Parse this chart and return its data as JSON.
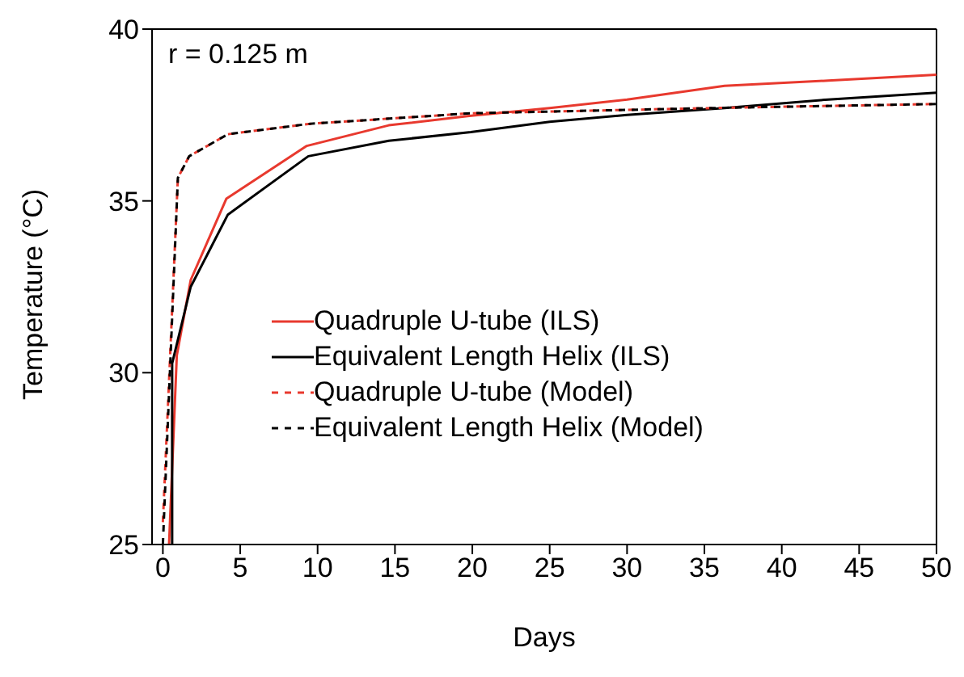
{
  "chart_data": {
    "type": "line",
    "xlabel": "Days",
    "ylabel": "Temperature (°C)",
    "annotations": [
      "r = 0.125 m"
    ],
    "xlim": [
      -0.7,
      50
    ],
    "xticks": [
      0,
      5,
      10,
      15,
      20,
      25,
      30,
      35,
      40,
      45,
      50
    ],
    "ylim": [
      25,
      40
    ],
    "yticks": [
      25,
      30,
      35,
      40
    ],
    "grid": false,
    "legend": "bottom",
    "marker": "none",
    "series": [
      {
        "name": "Quadruple U-tube (ILS)",
        "color": "#e8392e",
        "line_style": "solid",
        "x": [
          0.4,
          0.9,
          1.8,
          4.1,
          9.3,
          14.6,
          19.8,
          25,
          30,
          36.3,
          43,
          50
        ],
        "values": [
          25,
          30.5,
          32.7,
          35.06,
          36.6,
          37.2,
          37.47,
          37.7,
          37.95,
          38.35,
          38.5,
          38.67
        ]
      },
      {
        "name": "Equivalent Length Helix (ILS)",
        "color": "#000000",
        "line_style": "solid",
        "x": [
          0.6,
          0.6,
          1.8,
          4.2,
          9.4,
          14.6,
          19.9,
          25,
          30,
          36.3,
          43,
          50
        ],
        "values": [
          25,
          30.27,
          32.5,
          34.6,
          36.3,
          36.75,
          37.0,
          37.3,
          37.5,
          37.7,
          37.95,
          38.15
        ]
      },
      {
        "name": "Quadruple U-tube (Model)",
        "color": "#e8392e",
        "line_style": "dashed",
        "x": [
          0,
          0.97,
          1.7,
          4.2,
          9.4,
          19.9,
          36.3,
          50
        ],
        "values": [
          25.65,
          35.67,
          36.3,
          36.94,
          37.24,
          37.55,
          37.71,
          37.82
        ]
      },
      {
        "name": "Equivalent Length Helix (Model)",
        "color": "#000000",
        "line_style": "dashed",
        "x": [
          0,
          0.97,
          1.7,
          4.2,
          9.4,
          19.9,
          36.3,
          50
        ],
        "values": [
          25,
          35.67,
          36.3,
          36.94,
          37.24,
          37.55,
          37.71,
          37.82
        ]
      }
    ]
  }
}
